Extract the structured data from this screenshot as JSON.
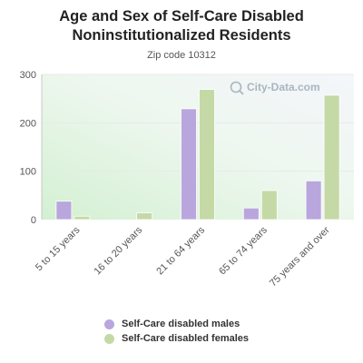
{
  "chart_data": {
    "type": "bar",
    "title": "Age and Sex of Self-Care Disabled Noninstitutionalized Residents",
    "subtitle": "Zip code 10312",
    "categories": [
      "5 to 15 years",
      "16 to 20 years",
      "21 to 64 years",
      "65 to 74 years",
      "75 years and over"
    ],
    "series": [
      {
        "name": "Self-Care disabled males",
        "color": "#b9a6dd",
        "values": [
          38,
          0,
          229,
          24,
          80
        ]
      },
      {
        "name": "Self-Care disabled females",
        "color": "#c4d9a6",
        "values": [
          7,
          14,
          269,
          60,
          257
        ]
      }
    ],
    "yticks": [
      "0",
      "100",
      "200",
      "300"
    ],
    "ylim": [
      0,
      300
    ],
    "xlabel": "",
    "ylabel": "",
    "grid": true,
    "legend_position": "bottom",
    "watermark": "City-Data.com"
  }
}
